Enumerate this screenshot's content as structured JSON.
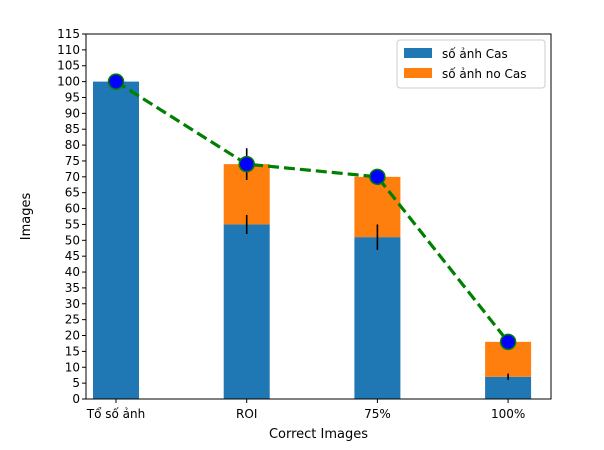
{
  "chart_data": {
    "type": "bar",
    "stacked": true,
    "categories": [
      "Tổ số ảnh",
      "ROI",
      "75%",
      "100%"
    ],
    "series": [
      {
        "name": "số ảnh Cas",
        "color": "#1f77b4",
        "values": [
          100,
          55,
          51,
          7
        ],
        "error": [
          0,
          3,
          4,
          1
        ]
      },
      {
        "name": "số ảnh no Cas",
        "color": "#ff7f0e",
        "values": [
          0,
          19,
          19,
          11
        ],
        "error": [
          0,
          5,
          0,
          0
        ]
      }
    ],
    "line": {
      "color": "#008000",
      "style": "dashed",
      "marker_color": "#0000ff",
      "values": [
        100,
        74,
        70,
        18
      ]
    },
    "xlabel": "Correct Images",
    "ylabel": "Images",
    "ylim": [
      0,
      115
    ],
    "yticks": [
      0,
      5,
      10,
      15,
      20,
      25,
      30,
      35,
      40,
      45,
      50,
      55,
      60,
      65,
      70,
      75,
      80,
      85,
      90,
      95,
      100,
      105,
      110,
      115
    ],
    "grid": false,
    "legend_position": "top-right"
  }
}
